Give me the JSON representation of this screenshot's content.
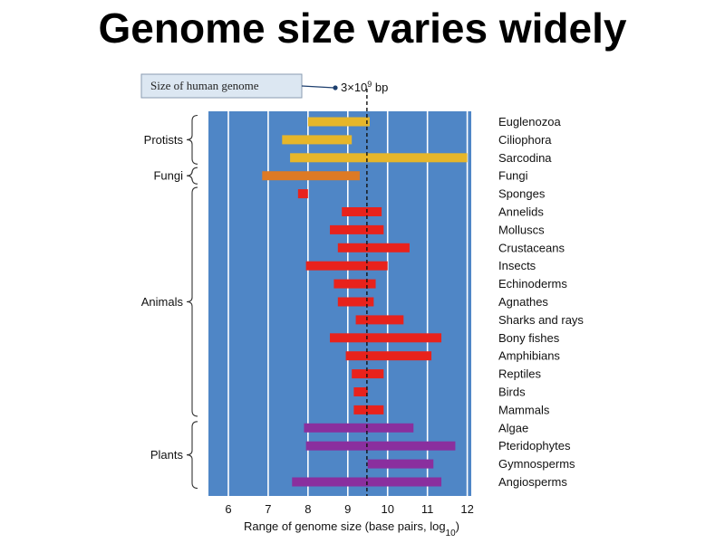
{
  "title": "Genome size varies widely",
  "chart_data": {
    "type": "bar",
    "orientation": "horizontal-range",
    "xlabel": "Range of genome size (base pairs, log",
    "xlabel_subscript": "10",
    "xlabel_suffix": ")",
    "xlim": [
      5.5,
      12.1
    ],
    "xticks": [
      6,
      7,
      8,
      9,
      10,
      11,
      12
    ],
    "grid": true,
    "reference": {
      "label": "Size of human genome",
      "value_text": "3×10",
      "value_exp": "9",
      "value_unit": " bp",
      "x": 9.48
    },
    "groups": [
      {
        "name": "Protists",
        "from": "Euglenozoa",
        "to": "Sarcodina"
      },
      {
        "name": "Fungi",
        "from": "Fungi",
        "to": "Fungi"
      },
      {
        "name": "Animals",
        "from": "Sponges",
        "to": "Mammals"
      },
      {
        "name": "Plants",
        "from": "Algae",
        "to": "Angiosperms"
      }
    ],
    "colors": {
      "protists": "#e6b62a",
      "fungi": "#dd7a25",
      "animals": "#e8221c",
      "plants": "#8a2f9e",
      "background": "#4f86c6",
      "grid": "#ffffff",
      "reference": "#111111"
    },
    "series": [
      {
        "category": "Euglenozoa",
        "min": 8.0,
        "max": 9.55,
        "color": "#e6b62a"
      },
      {
        "category": "Ciliophora",
        "min": 7.35,
        "max": 9.1,
        "color": "#e6b62a"
      },
      {
        "category": "Sarcodina",
        "min": 7.55,
        "max": 12.0,
        "color": "#e6b62a"
      },
      {
        "category": "Fungi",
        "min": 6.85,
        "max": 9.3,
        "color": "#dd7a25"
      },
      {
        "category": "Sponges",
        "min": 7.75,
        "max": 8.0,
        "color": "#e8221c"
      },
      {
        "category": "Annelids",
        "min": 8.85,
        "max": 9.85,
        "color": "#e8221c"
      },
      {
        "category": "Molluscs",
        "min": 8.55,
        "max": 9.9,
        "color": "#e8221c"
      },
      {
        "category": "Crustaceans",
        "min": 8.75,
        "max": 10.55,
        "color": "#e8221c"
      },
      {
        "category": "Insects",
        "min": 7.95,
        "max": 10.0,
        "color": "#e8221c"
      },
      {
        "category": "Echinoderms",
        "min": 8.65,
        "max": 9.7,
        "color": "#e8221c"
      },
      {
        "category": "Agnathes",
        "min": 8.75,
        "max": 9.65,
        "color": "#e8221c"
      },
      {
        "category": "Sharks and rays",
        "min": 9.2,
        "max": 10.4,
        "color": "#e8221c"
      },
      {
        "category": "Bony fishes",
        "min": 8.55,
        "max": 11.35,
        "color": "#e8221c"
      },
      {
        "category": "Amphibians",
        "min": 8.95,
        "max": 11.1,
        "color": "#e8221c"
      },
      {
        "category": "Reptiles",
        "min": 9.1,
        "max": 9.9,
        "color": "#e8221c"
      },
      {
        "category": "Birds",
        "min": 9.15,
        "max": 9.5,
        "color": "#e8221c"
      },
      {
        "category": "Mammals",
        "min": 9.15,
        "max": 9.9,
        "color": "#e8221c"
      },
      {
        "category": "Algae",
        "min": 7.9,
        "max": 10.65,
        "color": "#8a2f9e"
      },
      {
        "category": "Pteridophytes",
        "min": 7.95,
        "max": 11.7,
        "color": "#8a2f9e"
      },
      {
        "category": "Gymnosperms",
        "min": 9.5,
        "max": 11.15,
        "color": "#8a2f9e"
      },
      {
        "category": "Angiosperms",
        "min": 7.6,
        "max": 11.35,
        "color": "#8a2f9e"
      }
    ]
  }
}
